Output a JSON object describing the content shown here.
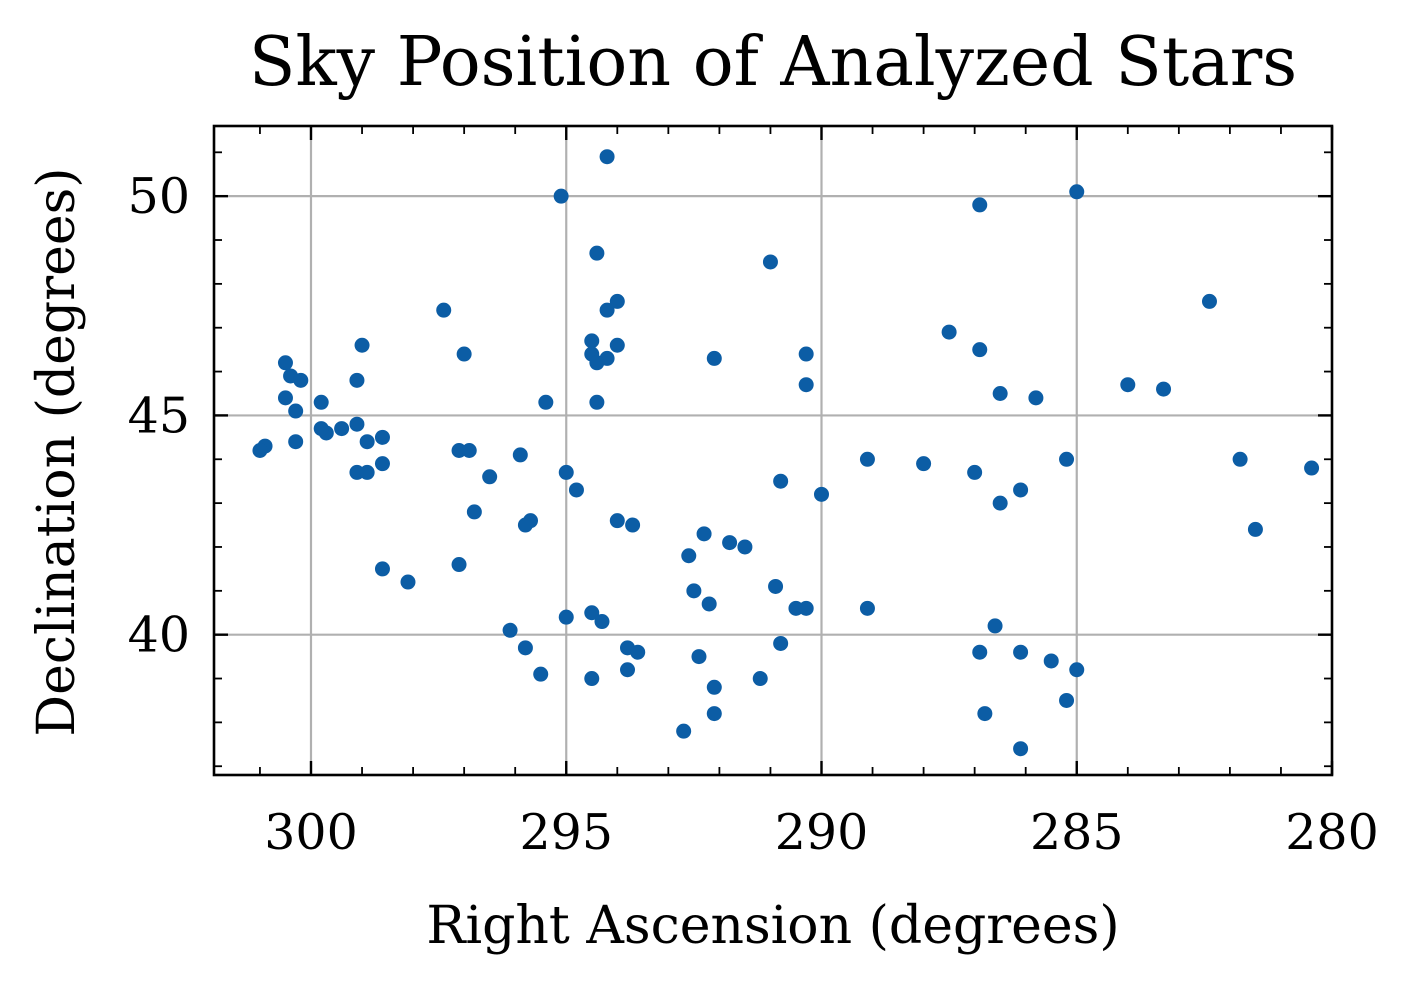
{
  "chart_data": {
    "type": "scatter",
    "title": "Sky Position of Analyzed Stars",
    "xlabel": "Right Ascension (degrees)",
    "ylabel": "Declination (degrees)",
    "xlim": [
      301.9,
      280.0
    ],
    "ylim": [
      36.8,
      51.6
    ],
    "x_inverted": true,
    "xticks": [
      300,
      295,
      290,
      285,
      280
    ],
    "xtick_labels": [
      "300",
      "295",
      "290",
      "285",
      "280"
    ],
    "yticks": [
      40,
      45,
      50
    ],
    "ytick_labels": [
      "40",
      "45",
      "50"
    ],
    "x_minor_step": 1,
    "y_minor_step": 1,
    "grid": true,
    "marker_color": "#0c5da5",
    "points": [
      [
        294.2,
        50.9
      ],
      [
        295.1,
        50.0
      ],
      [
        285.0,
        50.1
      ],
      [
        286.9,
        49.8
      ],
      [
        294.4,
        48.7
      ],
      [
        291.0,
        48.5
      ],
      [
        282.4,
        47.6
      ],
      [
        294.0,
        47.6
      ],
      [
        294.2,
        47.4
      ],
      [
        297.4,
        47.4
      ],
      [
        287.5,
        46.9
      ],
      [
        294.5,
        46.7
      ],
      [
        299.0,
        46.6
      ],
      [
        294.0,
        46.6
      ],
      [
        297.0,
        46.4
      ],
      [
        294.5,
        46.4
      ],
      [
        290.3,
        46.4
      ],
      [
        286.9,
        46.5
      ],
      [
        294.2,
        46.3
      ],
      [
        292.1,
        46.3
      ],
      [
        294.4,
        46.2
      ],
      [
        300.5,
        46.2
      ],
      [
        300.4,
        45.9
      ],
      [
        300.2,
        45.8
      ],
      [
        299.1,
        45.8
      ],
      [
        290.3,
        45.7
      ],
      [
        284.0,
        45.7
      ],
      [
        283.3,
        45.6
      ],
      [
        286.5,
        45.5
      ],
      [
        285.8,
        45.4
      ],
      [
        300.5,
        45.4
      ],
      [
        299.8,
        45.3
      ],
      [
        295.4,
        45.3
      ],
      [
        294.4,
        45.3
      ],
      [
        300.3,
        45.1
      ],
      [
        299.4,
        44.7
      ],
      [
        299.1,
        44.8
      ],
      [
        298.9,
        44.4
      ],
      [
        298.6,
        44.5
      ],
      [
        299.7,
        44.6
      ],
      [
        299.8,
        44.7
      ],
      [
        300.3,
        44.4
      ],
      [
        300.9,
        44.3
      ],
      [
        301.0,
        44.2
      ],
      [
        297.1,
        44.2
      ],
      [
        296.9,
        44.2
      ],
      [
        295.9,
        44.1
      ],
      [
        289.1,
        44.0
      ],
      [
        288.0,
        43.9
      ],
      [
        285.2,
        44.0
      ],
      [
        281.8,
        44.0
      ],
      [
        280.4,
        43.8
      ],
      [
        287.0,
        43.7
      ],
      [
        298.6,
        43.9
      ],
      [
        299.1,
        43.7
      ],
      [
        298.9,
        43.7
      ],
      [
        296.5,
        43.6
      ],
      [
        295.0,
        43.7
      ],
      [
        290.8,
        43.5
      ],
      [
        290.0,
        43.2
      ],
      [
        286.1,
        43.3
      ],
      [
        286.5,
        43.0
      ],
      [
        294.8,
        43.3
      ],
      [
        296.8,
        42.8
      ],
      [
        295.7,
        42.6
      ],
      [
        295.8,
        42.5
      ],
      [
        294.0,
        42.6
      ],
      [
        293.7,
        42.5
      ],
      [
        292.3,
        42.3
      ],
      [
        291.8,
        42.1
      ],
      [
        291.5,
        42.0
      ],
      [
        292.6,
        41.8
      ],
      [
        281.5,
        42.4
      ],
      [
        298.6,
        41.5
      ],
      [
        298.1,
        41.2
      ],
      [
        297.1,
        41.6
      ],
      [
        290.9,
        41.1
      ],
      [
        292.5,
        41.0
      ],
      [
        292.2,
        40.7
      ],
      [
        290.5,
        40.6
      ],
      [
        290.3,
        40.6
      ],
      [
        289.1,
        40.6
      ],
      [
        295.0,
        40.4
      ],
      [
        294.5,
        40.5
      ],
      [
        294.3,
        40.3
      ],
      [
        296.1,
        40.1
      ],
      [
        286.6,
        40.2
      ],
      [
        295.8,
        39.7
      ],
      [
        293.8,
        39.7
      ],
      [
        293.6,
        39.6
      ],
      [
        290.8,
        39.8
      ],
      [
        286.9,
        39.6
      ],
      [
        286.1,
        39.6
      ],
      [
        285.5,
        39.4
      ],
      [
        285.0,
        39.2
      ],
      [
        292.4,
        39.5
      ],
      [
        295.5,
        39.1
      ],
      [
        293.8,
        39.2
      ],
      [
        294.5,
        39.0
      ],
      [
        291.2,
        39.0
      ],
      [
        292.1,
        38.8
      ],
      [
        292.1,
        38.2
      ],
      [
        285.2,
        38.5
      ],
      [
        286.8,
        38.2
      ],
      [
        286.1,
        37.4
      ],
      [
        292.7,
        37.8
      ]
    ]
  }
}
